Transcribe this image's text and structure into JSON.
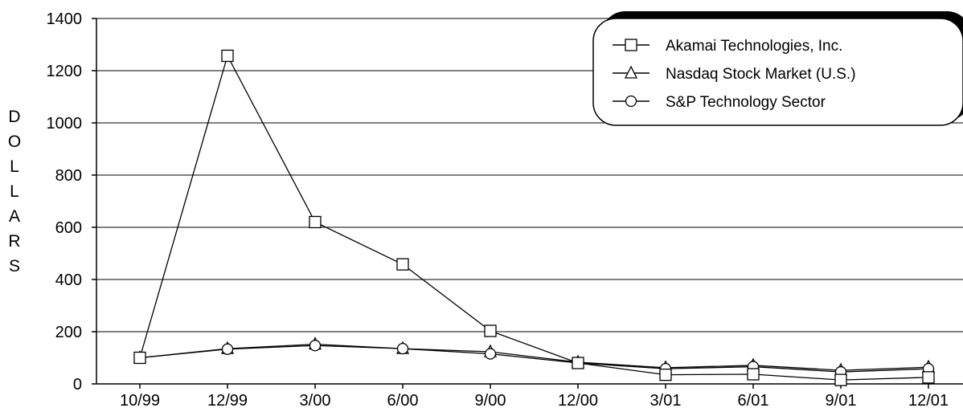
{
  "chart_data": {
    "type": "line",
    "title": "",
    "xlabel": "",
    "ylabel": "DOLLARS",
    "categories": [
      "10/99",
      "12/99",
      "3/00",
      "6/00",
      "9/00",
      "12/00",
      "3/01",
      "6/01",
      "9/01",
      "12/01"
    ],
    "ylim": [
      0,
      1400
    ],
    "yticks": [
      0,
      200,
      400,
      600,
      800,
      1000,
      1200,
      1400
    ],
    "grid": "horizontal",
    "legend_position": "top-right",
    "series": [
      {
        "name": "Akamai Technologies, Inc.",
        "marker": "square",
        "values": [
          100,
          1257,
          620,
          458,
          203,
          80,
          35,
          37,
          15,
          25
        ]
      },
      {
        "name": "Nasdaq Stock Market (U.S.)",
        "marker": "triangle",
        "values": [
          100,
          135,
          152,
          135,
          123,
          83,
          62,
          71,
          52,
          64
        ]
      },
      {
        "name": "S&P Technology Sector",
        "marker": "circle",
        "values": [
          100,
          133,
          147,
          135,
          115,
          80,
          58,
          66,
          46,
          58
        ]
      }
    ]
  }
}
